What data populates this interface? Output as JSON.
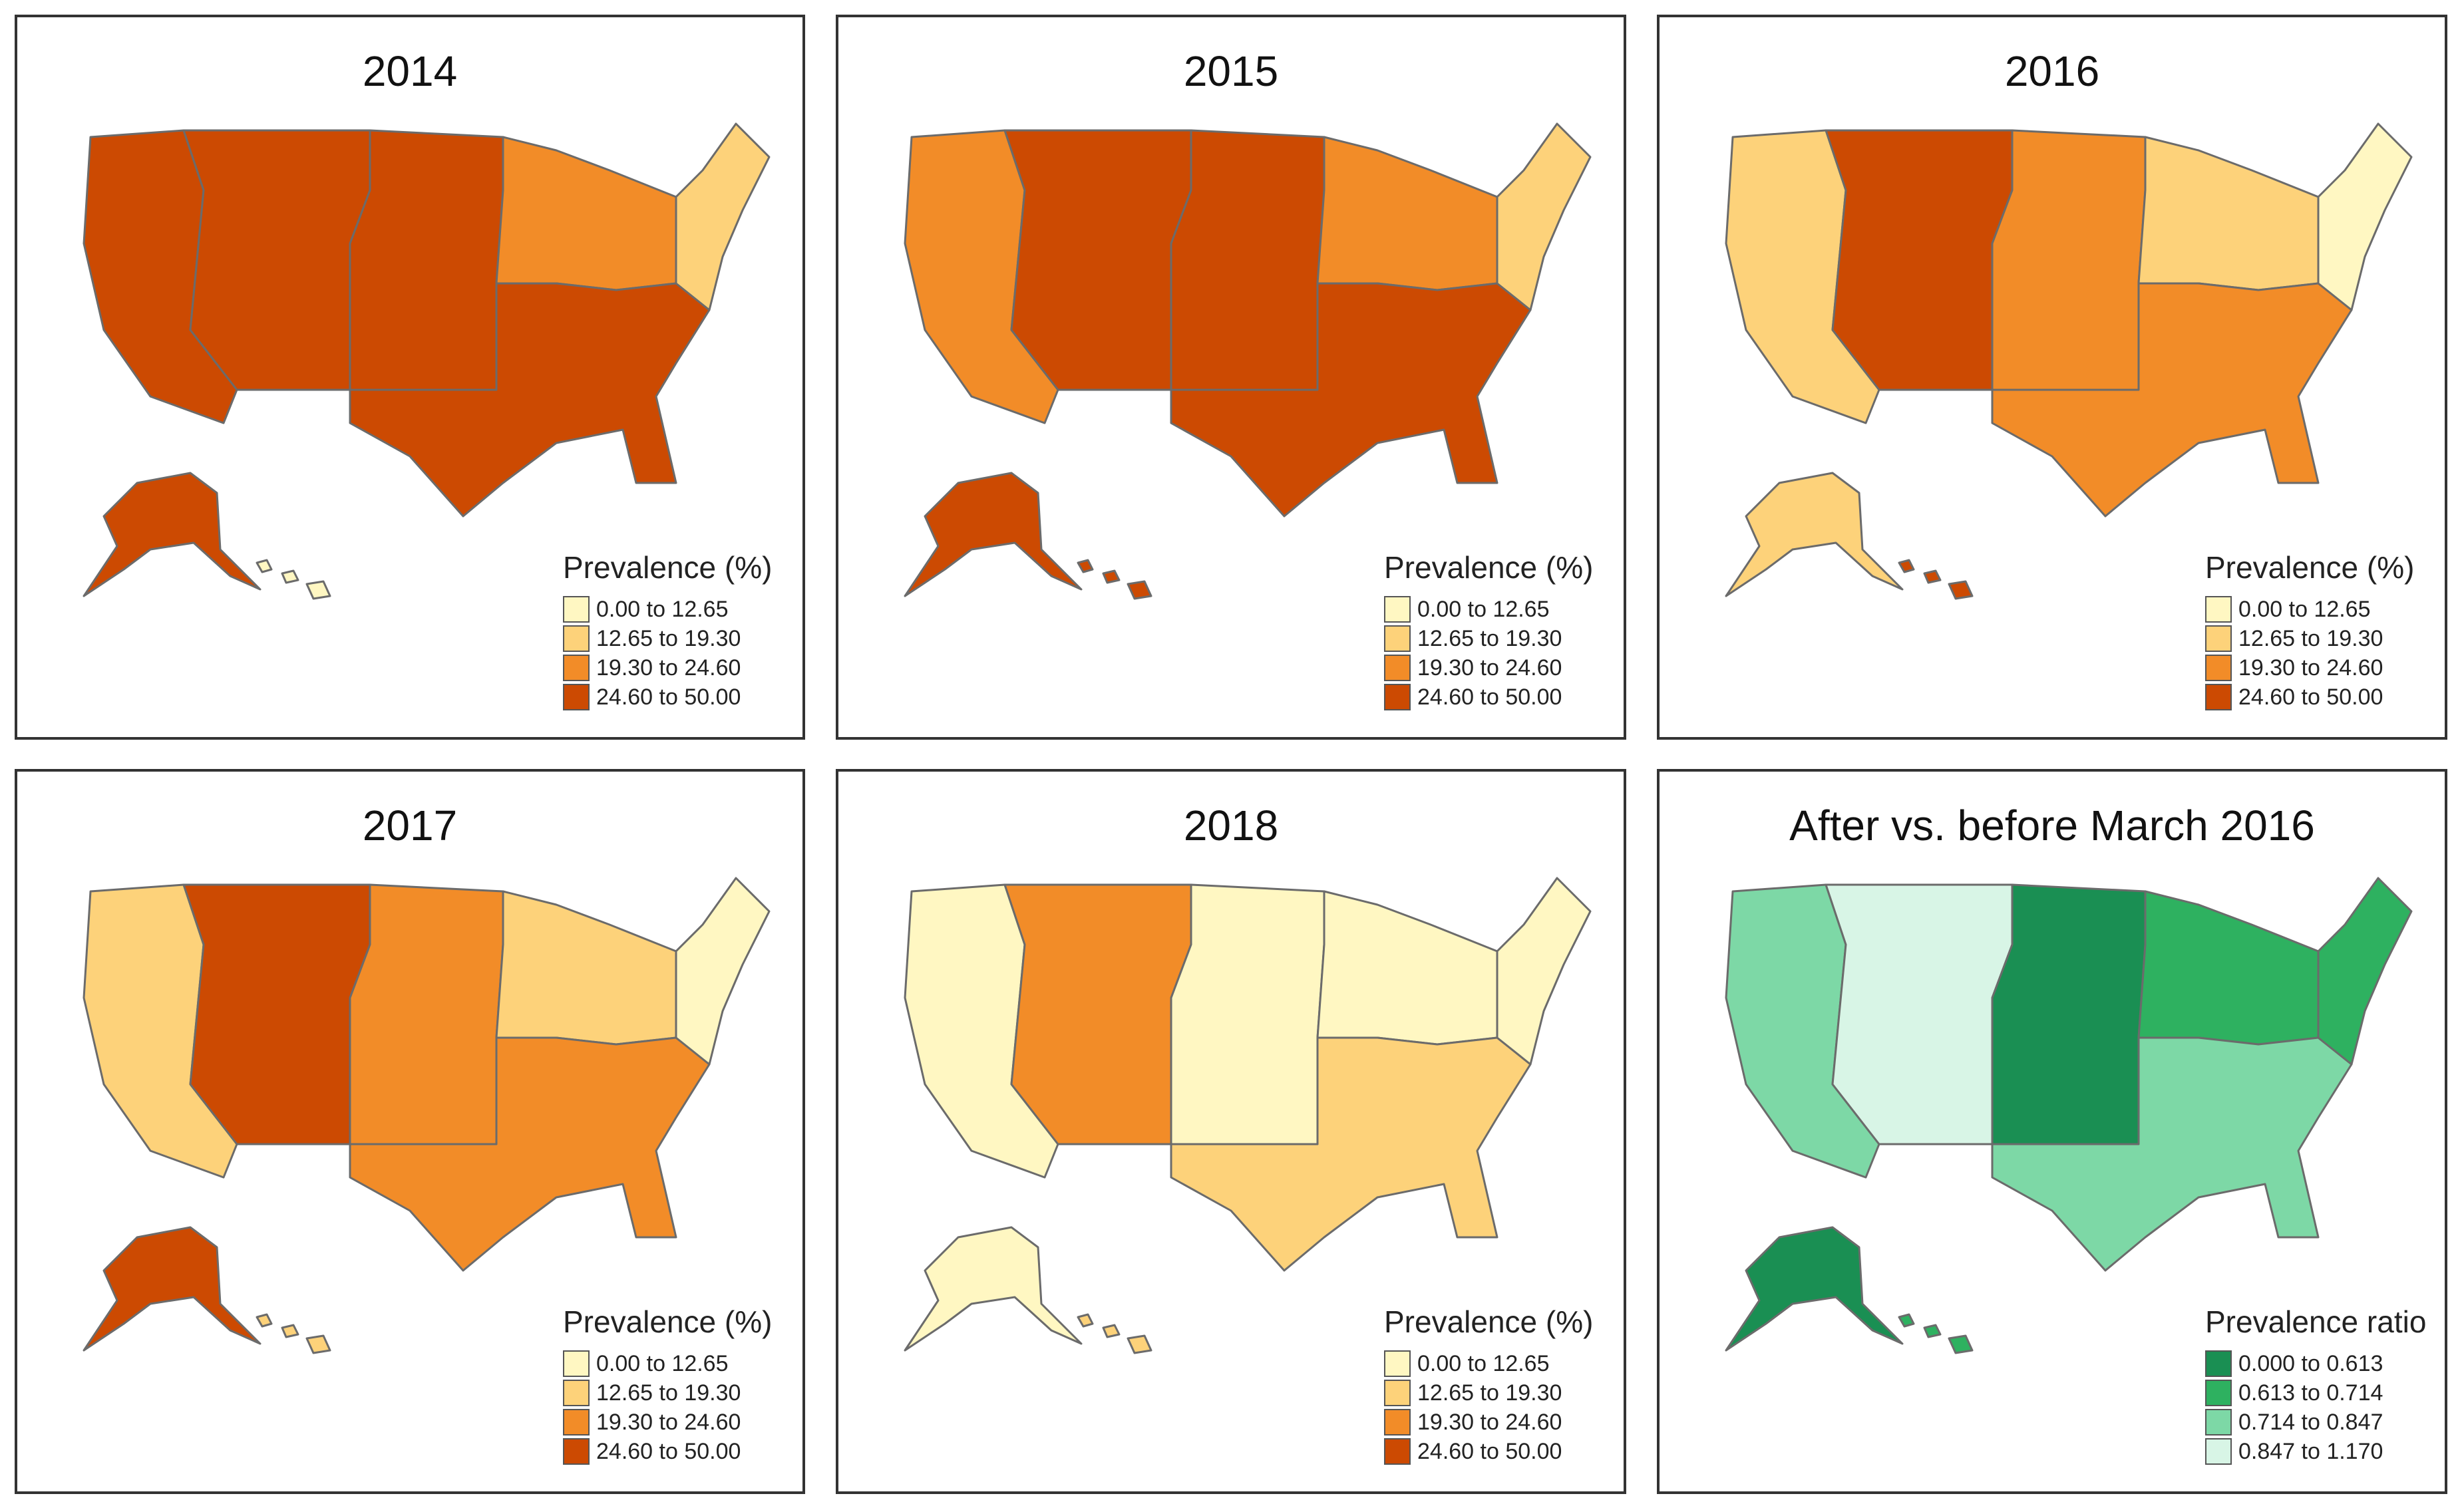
{
  "colors": {
    "prevalence": [
      "#fff7c2",
      "#fdd27a",
      "#f28c28",
      "#cc4a02"
    ],
    "ratio": [
      "#1a8f53",
      "#2eb160",
      "#7dd8a6",
      "#d8f5e6"
    ],
    "outline": "#6b6b6b"
  },
  "legends": {
    "prevalence": {
      "title": "Prevalence (%)",
      "items": [
        "0.00 to 12.65",
        "12.65 to 19.30",
        "19.30 to 24.60",
        "24.60 to 50.00"
      ]
    },
    "ratio": {
      "title": "Prevalence ratio",
      "items": [
        "0.000 to 0.613",
        "0.613 to 0.714",
        "0.714 to 0.847",
        "0.847 to 1.170"
      ]
    }
  },
  "panels": [
    {
      "title": "2014",
      "legend": "prevalence",
      "palette": "prevalence",
      "regions": {
        "west": 3,
        "mountain": 3,
        "plains": 3,
        "midwest": 2,
        "south": 3,
        "northeast": 1,
        "alaska": 3,
        "hawaii": 0
      }
    },
    {
      "title": "2015",
      "legend": "prevalence",
      "palette": "prevalence",
      "regions": {
        "west": 2,
        "mountain": 3,
        "plains": 3,
        "midwest": 2,
        "south": 3,
        "northeast": 1,
        "alaska": 3,
        "hawaii": 3
      }
    },
    {
      "title": "2016",
      "legend": "prevalence",
      "palette": "prevalence",
      "regions": {
        "west": 1,
        "mountain": 3,
        "plains": 2,
        "midwest": 1,
        "south": 2,
        "northeast": 0,
        "alaska": 1,
        "hawaii": 3
      }
    },
    {
      "title": "2017",
      "legend": "prevalence",
      "palette": "prevalence",
      "regions": {
        "west": 1,
        "mountain": 3,
        "plains": 2,
        "midwest": 1,
        "south": 2,
        "northeast": 0,
        "alaska": 3,
        "hawaii": 1
      }
    },
    {
      "title": "2018",
      "legend": "prevalence",
      "palette": "prevalence",
      "regions": {
        "west": 0,
        "mountain": 2,
        "plains": 0,
        "midwest": 0,
        "south": 1,
        "northeast": 0,
        "alaska": 0,
        "hawaii": 1
      }
    },
    {
      "title": "After vs. before March 2016",
      "legend": "ratio",
      "palette": "ratio",
      "regions": {
        "west": 2,
        "mountain": 3,
        "plains": 0,
        "midwest": 1,
        "south": 2,
        "northeast": 1,
        "alaska": 0,
        "hawaii": 1
      }
    }
  ]
}
